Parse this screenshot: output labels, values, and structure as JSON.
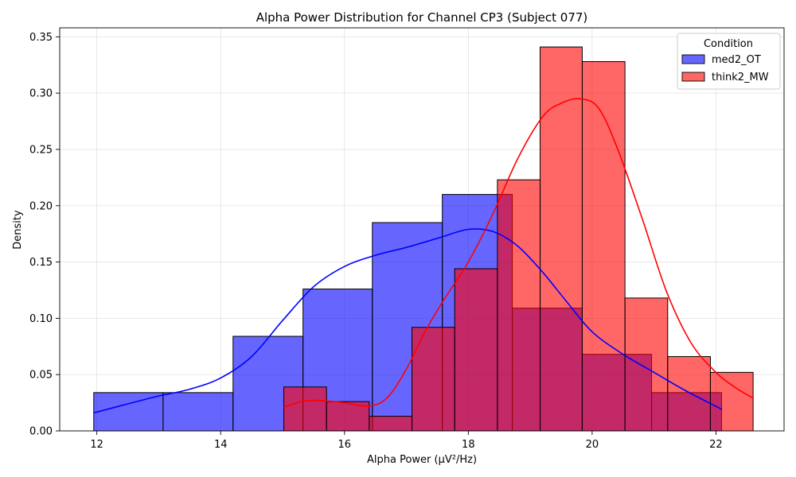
{
  "chart_data": {
    "type": "histogram",
    "title": "Alpha Power Distribution for Channel CP3 (Subject 077)",
    "xlabel": "Alpha Power (µV²/Hz)",
    "ylabel": "Density",
    "xlim": [
      11.4,
      23.1
    ],
    "ylim": [
      0,
      0.358
    ],
    "xticks": [
      12,
      14,
      16,
      18,
      20,
      22
    ],
    "yticks": [
      0.0,
      0.05,
      0.1,
      0.15,
      0.2,
      0.25,
      0.3,
      0.35
    ],
    "grid": true,
    "legend": {
      "title": "Condition",
      "placement": "top-right"
    },
    "series": [
      {
        "name": "med2_OT",
        "fill": "#0000ff",
        "line": "#0000ff",
        "bins": [
          {
            "x0": 11.95,
            "x1": 13.07,
            "density": 0.034
          },
          {
            "x0": 13.07,
            "x1": 14.2,
            "density": 0.034
          },
          {
            "x0": 14.2,
            "x1": 15.33,
            "density": 0.084
          },
          {
            "x0": 15.33,
            "x1": 16.45,
            "density": 0.126
          },
          {
            "x0": 16.45,
            "x1": 17.58,
            "density": 0.185
          },
          {
            "x0": 17.58,
            "x1": 18.71,
            "density": 0.21
          },
          {
            "x0": 18.71,
            "x1": 19.84,
            "density": 0.109
          },
          {
            "x0": 19.84,
            "x1": 20.96,
            "density": 0.068
          },
          {
            "x0": 20.96,
            "x1": 22.09,
            "density": 0.034
          }
        ],
        "kde": {
          "x": [
            11.95,
            12.5,
            13.0,
            13.5,
            14.0,
            14.5,
            15.0,
            15.5,
            16.0,
            16.5,
            17.0,
            17.5,
            18.0,
            18.4,
            18.8,
            19.2,
            19.6,
            20.0,
            20.5,
            21.0,
            21.5,
            22.1
          ],
          "y": [
            0.016,
            0.024,
            0.031,
            0.037,
            0.047,
            0.066,
            0.098,
            0.128,
            0.146,
            0.156,
            0.163,
            0.171,
            0.179,
            0.177,
            0.164,
            0.141,
            0.114,
            0.088,
            0.068,
            0.052,
            0.036,
            0.019
          ]
        }
      },
      {
        "name": "think2_MW",
        "fill": "#ff0000",
        "line": "#ff0000",
        "bins": [
          {
            "x0": 15.02,
            "x1": 15.71,
            "density": 0.039
          },
          {
            "x0": 15.71,
            "x1": 16.4,
            "density": 0.026
          },
          {
            "x0": 16.4,
            "x1": 17.09,
            "density": 0.013
          },
          {
            "x0": 17.09,
            "x1": 17.78,
            "density": 0.092
          },
          {
            "x0": 17.78,
            "x1": 18.47,
            "density": 0.144
          },
          {
            "x0": 18.47,
            "x1": 19.16,
            "density": 0.223
          },
          {
            "x0": 19.16,
            "x1": 19.84,
            "density": 0.341
          },
          {
            "x0": 19.84,
            "x1": 20.53,
            "density": 0.328
          },
          {
            "x0": 20.53,
            "x1": 21.22,
            "density": 0.118
          },
          {
            "x0": 21.22,
            "x1": 21.91,
            "density": 0.066
          },
          {
            "x0": 21.91,
            "x1": 22.6,
            "density": 0.052
          }
        ],
        "kde": {
          "x": [
            15.02,
            15.3,
            15.6,
            16.0,
            16.4,
            16.7,
            17.0,
            17.3,
            17.6,
            18.0,
            18.4,
            18.8,
            19.2,
            19.5,
            19.8,
            20.1,
            20.4,
            20.8,
            21.2,
            21.6,
            22.0,
            22.3,
            22.6
          ],
          "y": [
            0.021,
            0.026,
            0.027,
            0.025,
            0.022,
            0.03,
            0.055,
            0.088,
            0.116,
            0.15,
            0.193,
            0.242,
            0.279,
            0.291,
            0.295,
            0.287,
            0.252,
            0.19,
            0.124,
            0.078,
            0.052,
            0.039,
            0.029
          ]
        }
      }
    ]
  }
}
